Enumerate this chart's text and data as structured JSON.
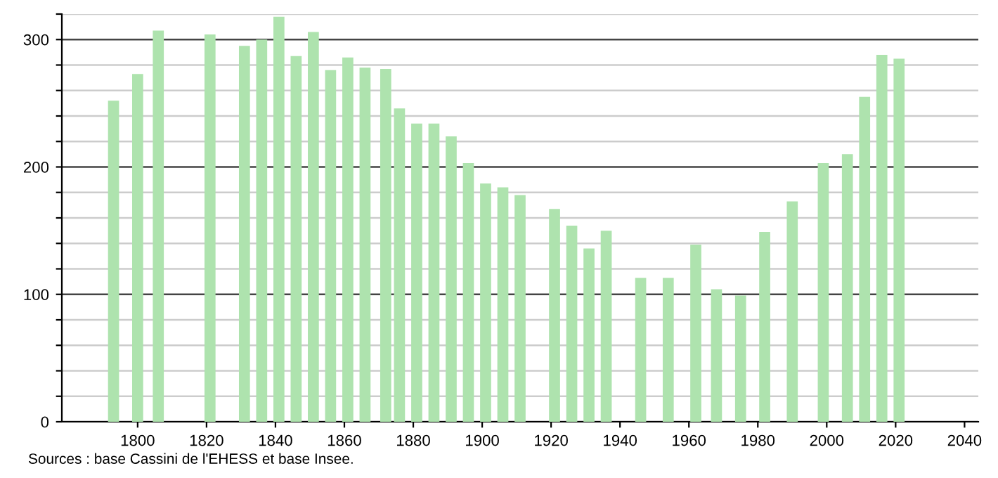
{
  "chart_data": {
    "type": "bar",
    "x": [
      1793,
      1800,
      1806,
      1821,
      1831,
      1836,
      1841,
      1846,
      1851,
      1856,
      1861,
      1866,
      1872,
      1876,
      1881,
      1886,
      1891,
      1896,
      1901,
      1906,
      1911,
      1921,
      1926,
      1931,
      1936,
      1946,
      1954,
      1962,
      1968,
      1975,
      1982,
      1990,
      1999,
      2006,
      2011,
      2016,
      2021
    ],
    "values": [
      252,
      273,
      307,
      304,
      295,
      300,
      318,
      287,
      306,
      276,
      286,
      278,
      277,
      246,
      234,
      234,
      224,
      203,
      187,
      184,
      178,
      167,
      154,
      136,
      150,
      113,
      113,
      139,
      104,
      99,
      149,
      173,
      203,
      210,
      255,
      288,
      285
    ],
    "color": "#aee3ae",
    "xlim": [
      1778,
      2044
    ],
    "xticks": [
      1800,
      1820,
      1840,
      1860,
      1880,
      1900,
      1920,
      1940,
      1960,
      1980,
      2000,
      2020,
      2040
    ],
    "ylim": [
      0,
      320
    ],
    "yticks": [
      0,
      {
        "value": 20,
        "label": null
      },
      {
        "value": 40,
        "label": null
      },
      {
        "value": 60,
        "label": null
      },
      {
        "value": 80,
        "label": null
      },
      100,
      {
        "value": 120,
        "label": null
      },
      {
        "value": 140,
        "label": null
      },
      {
        "value": 160,
        "label": null
      },
      {
        "value": 180,
        "label": null
      },
      200,
      {
        "value": 220,
        "label": null
      },
      {
        "value": 240,
        "label": null
      },
      {
        "value": 260,
        "label": null
      },
      {
        "value": 280,
        "label": null
      },
      300,
      {
        "value": 320,
        "label": null
      }
    ],
    "grid": "y",
    "annotations": [
      "Sources : base Cassini de l'EHESS et base Insee."
    ]
  }
}
